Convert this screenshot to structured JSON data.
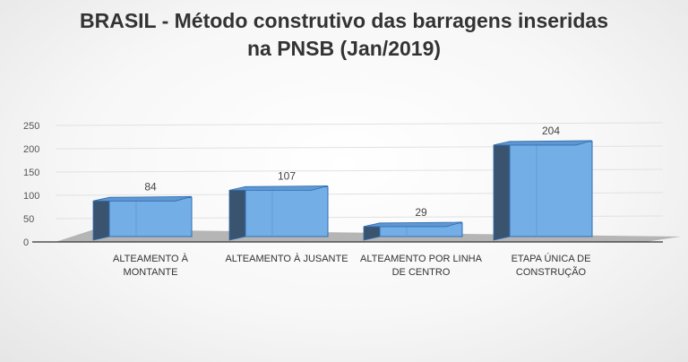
{
  "chart_data": {
    "type": "bar",
    "title_line1": "BRASIL - Método construtivo das barragens inseridas",
    "title_line2": "na PNSB (Jan/2019)",
    "categories": [
      [
        "ALTEAMENTO À",
        "MONTANTE"
      ],
      [
        "ALTEAMENTO À JUSANTE"
      ],
      [
        "ALTEAMENTO POR LINHA",
        "DE CENTRO"
      ],
      [
        "ETAPA ÚNICA DE",
        "CONSTRUÇÃO"
      ]
    ],
    "values": [
      84,
      107,
      29,
      204
    ],
    "yticks": [
      0,
      50,
      100,
      150,
      200,
      250
    ],
    "ylim": [
      0,
      250
    ],
    "grid": true,
    "legend": "none",
    "colors": {
      "bar_front": "#74aee6",
      "bar_side": "#3a536e",
      "bar_top": "#5e97d1",
      "bar_edge": "#2f6fb3",
      "floor": "#b5b5b5"
    }
  }
}
